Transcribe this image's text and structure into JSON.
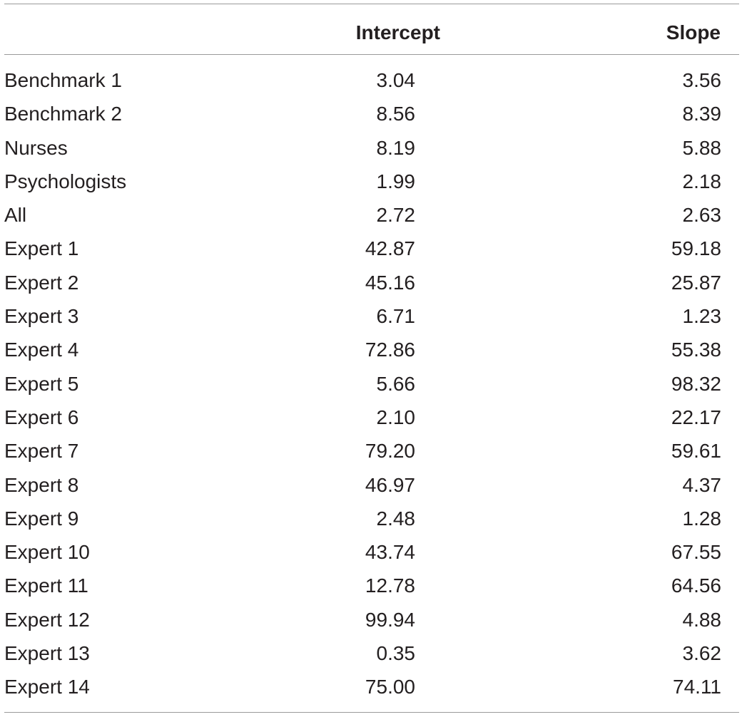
{
  "table": {
    "columns": [
      "",
      "Intercept",
      "Slope"
    ],
    "rows": [
      [
        "Benchmark 1",
        "3.04",
        "3.56"
      ],
      [
        "Benchmark 2",
        "8.56",
        "8.39"
      ],
      [
        "Nurses",
        "8.19",
        "5.88"
      ],
      [
        "Psychologists",
        "1.99",
        "2.18"
      ],
      [
        "All",
        "2.72",
        "2.63"
      ],
      [
        "Expert 1",
        "42.87",
        "59.18"
      ],
      [
        "Expert 2",
        "45.16",
        "25.87"
      ],
      [
        "Expert 3",
        "6.71",
        "1.23"
      ],
      [
        "Expert 4",
        "72.86",
        "55.38"
      ],
      [
        "Expert 5",
        "5.66",
        "98.32"
      ],
      [
        "Expert 6",
        "2.10",
        "22.17"
      ],
      [
        "Expert 7",
        "79.20",
        "59.61"
      ],
      [
        "Expert 8",
        "46.97",
        "4.37"
      ],
      [
        "Expert 9",
        "2.48",
        "1.28"
      ],
      [
        "Expert 10",
        "43.74",
        "67.55"
      ],
      [
        "Expert 11",
        "12.78",
        "64.56"
      ],
      [
        "Expert 12",
        "99.94",
        "4.88"
      ],
      [
        "Expert 13",
        "0.35",
        "3.62"
      ],
      [
        "Expert 14",
        "75.00",
        "74.11"
      ]
    ]
  }
}
